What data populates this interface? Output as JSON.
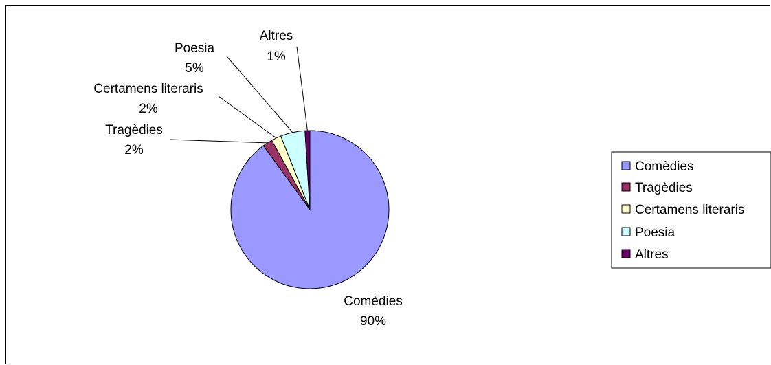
{
  "chart_data": {
    "type": "pie",
    "title": "",
    "categories": [
      "Comèdies",
      "Tragèdies",
      "Certamens literaris",
      "Poesia",
      "Altres"
    ],
    "values": [
      90,
      2,
      2,
      5,
      1
    ],
    "percent_labels": [
      "90%",
      "2%",
      "2%",
      "5%",
      "1%"
    ],
    "colors": [
      "#9999FF",
      "#993366",
      "#FFFFCC",
      "#CCFFFF",
      "#660066"
    ],
    "legend": {
      "position": "right",
      "entries": [
        "Comèdies",
        "Tragèdies",
        "Certamens literaris",
        "Poesia",
        "Altres"
      ]
    },
    "data_labels": "category and percent, with leader lines"
  }
}
